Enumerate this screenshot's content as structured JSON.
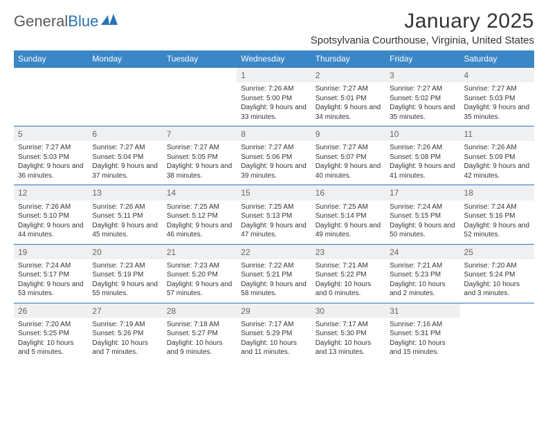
{
  "brand": {
    "part1": "General",
    "part2": "Blue"
  },
  "title": "January 2025",
  "location": "Spotsylvania Courthouse, Virginia, United States",
  "colors": {
    "header_bg": "#3b86c6",
    "rule": "#2a72b5",
    "date_bg": "#eef0f2",
    "text": "#333333"
  },
  "weekdays": [
    "Sunday",
    "Monday",
    "Tuesday",
    "Wednesday",
    "Thursday",
    "Friday",
    "Saturday"
  ],
  "first_weekday_index": 3,
  "days": [
    {
      "n": 1,
      "sr": "7:26 AM",
      "ss": "5:00 PM",
      "dl": "9 hours and 33 minutes."
    },
    {
      "n": 2,
      "sr": "7:27 AM",
      "ss": "5:01 PM",
      "dl": "9 hours and 34 minutes."
    },
    {
      "n": 3,
      "sr": "7:27 AM",
      "ss": "5:02 PM",
      "dl": "9 hours and 35 minutes."
    },
    {
      "n": 4,
      "sr": "7:27 AM",
      "ss": "5:03 PM",
      "dl": "9 hours and 35 minutes."
    },
    {
      "n": 5,
      "sr": "7:27 AM",
      "ss": "5:03 PM",
      "dl": "9 hours and 36 minutes."
    },
    {
      "n": 6,
      "sr": "7:27 AM",
      "ss": "5:04 PM",
      "dl": "9 hours and 37 minutes."
    },
    {
      "n": 7,
      "sr": "7:27 AM",
      "ss": "5:05 PM",
      "dl": "9 hours and 38 minutes."
    },
    {
      "n": 8,
      "sr": "7:27 AM",
      "ss": "5:06 PM",
      "dl": "9 hours and 39 minutes."
    },
    {
      "n": 9,
      "sr": "7:27 AM",
      "ss": "5:07 PM",
      "dl": "9 hours and 40 minutes."
    },
    {
      "n": 10,
      "sr": "7:26 AM",
      "ss": "5:08 PM",
      "dl": "9 hours and 41 minutes."
    },
    {
      "n": 11,
      "sr": "7:26 AM",
      "ss": "5:09 PM",
      "dl": "9 hours and 42 minutes."
    },
    {
      "n": 12,
      "sr": "7:26 AM",
      "ss": "5:10 PM",
      "dl": "9 hours and 44 minutes."
    },
    {
      "n": 13,
      "sr": "7:26 AM",
      "ss": "5:11 PM",
      "dl": "9 hours and 45 minutes."
    },
    {
      "n": 14,
      "sr": "7:25 AM",
      "ss": "5:12 PM",
      "dl": "9 hours and 46 minutes."
    },
    {
      "n": 15,
      "sr": "7:25 AM",
      "ss": "5:13 PM",
      "dl": "9 hours and 47 minutes."
    },
    {
      "n": 16,
      "sr": "7:25 AM",
      "ss": "5:14 PM",
      "dl": "9 hours and 49 minutes."
    },
    {
      "n": 17,
      "sr": "7:24 AM",
      "ss": "5:15 PM",
      "dl": "9 hours and 50 minutes."
    },
    {
      "n": 18,
      "sr": "7:24 AM",
      "ss": "5:16 PM",
      "dl": "9 hours and 52 minutes."
    },
    {
      "n": 19,
      "sr": "7:24 AM",
      "ss": "5:17 PM",
      "dl": "9 hours and 53 minutes."
    },
    {
      "n": 20,
      "sr": "7:23 AM",
      "ss": "5:19 PM",
      "dl": "9 hours and 55 minutes."
    },
    {
      "n": 21,
      "sr": "7:23 AM",
      "ss": "5:20 PM",
      "dl": "9 hours and 57 minutes."
    },
    {
      "n": 22,
      "sr": "7:22 AM",
      "ss": "5:21 PM",
      "dl": "9 hours and 58 minutes."
    },
    {
      "n": 23,
      "sr": "7:21 AM",
      "ss": "5:22 PM",
      "dl": "10 hours and 0 minutes."
    },
    {
      "n": 24,
      "sr": "7:21 AM",
      "ss": "5:23 PM",
      "dl": "10 hours and 2 minutes."
    },
    {
      "n": 25,
      "sr": "7:20 AM",
      "ss": "5:24 PM",
      "dl": "10 hours and 3 minutes."
    },
    {
      "n": 26,
      "sr": "7:20 AM",
      "ss": "5:25 PM",
      "dl": "10 hours and 5 minutes."
    },
    {
      "n": 27,
      "sr": "7:19 AM",
      "ss": "5:26 PM",
      "dl": "10 hours and 7 minutes."
    },
    {
      "n": 28,
      "sr": "7:18 AM",
      "ss": "5:27 PM",
      "dl": "10 hours and 9 minutes."
    },
    {
      "n": 29,
      "sr": "7:17 AM",
      "ss": "5:29 PM",
      "dl": "10 hours and 11 minutes."
    },
    {
      "n": 30,
      "sr": "7:17 AM",
      "ss": "5:30 PM",
      "dl": "10 hours and 13 minutes."
    },
    {
      "n": 31,
      "sr": "7:16 AM",
      "ss": "5:31 PM",
      "dl": "10 hours and 15 minutes."
    }
  ],
  "labels": {
    "sunrise": "Sunrise:",
    "sunset": "Sunset:",
    "daylight": "Daylight:"
  }
}
